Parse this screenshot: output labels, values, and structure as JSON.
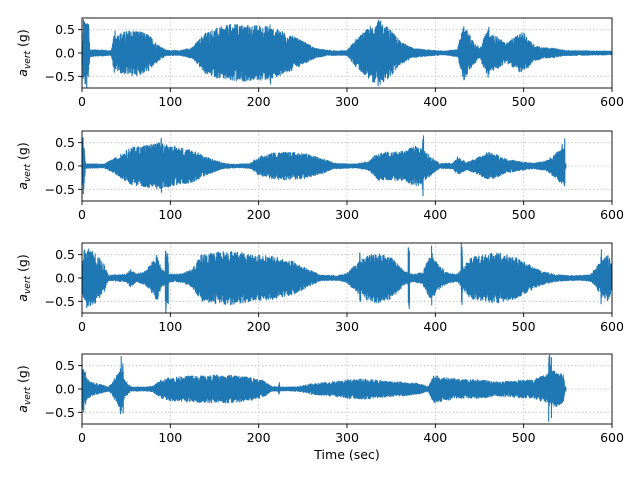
{
  "colors": {
    "series": "#1f77b4",
    "grid": "#b0b0b0"
  },
  "chart_data": [
    {
      "type": "line",
      "ylabel_base": "a",
      "ylabel_sub": "vert",
      "ylabel_unit": " (g)",
      "xlabel": "",
      "xlim": [
        0,
        600
      ],
      "ylim": [
        -0.75,
        0.75
      ],
      "xticks": [
        0,
        100,
        200,
        300,
        400,
        500,
        600
      ],
      "yticks": [
        -0.5,
        0.0,
        0.5
      ],
      "ytick_labels": [
        "−0.5",
        "0.0",
        "0.5"
      ],
      "grid": true,
      "data_end": 600,
      "envelope": [
        [
          0,
          0.05
        ],
        [
          3,
          0.7
        ],
        [
          6,
          0.8
        ],
        [
          9,
          0.08
        ],
        [
          33,
          0.05
        ],
        [
          36,
          0.35
        ],
        [
          45,
          0.45
        ],
        [
          60,
          0.5
        ],
        [
          75,
          0.4
        ],
        [
          85,
          0.2
        ],
        [
          95,
          0.06
        ],
        [
          110,
          0.05
        ],
        [
          125,
          0.12
        ],
        [
          140,
          0.45
        ],
        [
          155,
          0.55
        ],
        [
          170,
          0.62
        ],
        [
          190,
          0.6
        ],
        [
          210,
          0.58
        ],
        [
          230,
          0.45
        ],
        [
          250,
          0.25
        ],
        [
          265,
          0.1
        ],
        [
          280,
          0.05
        ],
        [
          300,
          0.05
        ],
        [
          310,
          0.3
        ],
        [
          325,
          0.55
        ],
        [
          335,
          0.72
        ],
        [
          350,
          0.5
        ],
        [
          360,
          0.25
        ],
        [
          375,
          0.1
        ],
        [
          395,
          0.06
        ],
        [
          410,
          0.04
        ],
        [
          425,
          0.08
        ],
        [
          432,
          0.6
        ],
        [
          440,
          0.35
        ],
        [
          450,
          0.1
        ],
        [
          458,
          0.45
        ],
        [
          470,
          0.35
        ],
        [
          480,
          0.2
        ],
        [
          490,
          0.35
        ],
        [
          500,
          0.45
        ],
        [
          510,
          0.2
        ],
        [
          520,
          0.12
        ],
        [
          535,
          0.1
        ],
        [
          545,
          0.06
        ],
        [
          560,
          0.05
        ],
        [
          600,
          0.04
        ]
      ],
      "spikes": [
        [
          2,
          0.85
        ],
        [
          7,
          0.8
        ],
        [
          37,
          0.55
        ],
        [
          155,
          0.6
        ],
        [
          175,
          0.7
        ],
        [
          213,
          0.8
        ],
        [
          328,
          0.7
        ],
        [
          338,
          0.75
        ],
        [
          432,
          0.8
        ],
        [
          460,
          0.6
        ]
      ]
    },
    {
      "type": "line",
      "ylabel_base": "a",
      "ylabel_sub": "vert",
      "ylabel_unit": " (g)",
      "xlabel": "",
      "xlim": [
        0,
        600
      ],
      "ylim": [
        -0.75,
        0.75
      ],
      "xticks": [
        0,
        100,
        200,
        300,
        400,
        500,
        600
      ],
      "yticks": [
        -0.5,
        0.0,
        0.5
      ],
      "ytick_labels": [
        "−0.5",
        "0.0",
        "0.5"
      ],
      "grid": true,
      "data_end": 548,
      "envelope": [
        [
          0,
          0.04
        ],
        [
          2,
          0.5
        ],
        [
          4,
          0.05
        ],
        [
          25,
          0.04
        ],
        [
          40,
          0.2
        ],
        [
          55,
          0.4
        ],
        [
          70,
          0.45
        ],
        [
          90,
          0.5
        ],
        [
          105,
          0.42
        ],
        [
          125,
          0.35
        ],
        [
          140,
          0.2
        ],
        [
          160,
          0.06
        ],
        [
          175,
          0.04
        ],
        [
          190,
          0.05
        ],
        [
          200,
          0.2
        ],
        [
          215,
          0.28
        ],
        [
          230,
          0.3
        ],
        [
          250,
          0.28
        ],
        [
          270,
          0.18
        ],
        [
          285,
          0.06
        ],
        [
          310,
          0.04
        ],
        [
          325,
          0.1
        ],
        [
          335,
          0.3
        ],
        [
          350,
          0.3
        ],
        [
          365,
          0.32
        ],
        [
          380,
          0.45
        ],
        [
          395,
          0.2
        ],
        [
          405,
          0.05
        ],
        [
          420,
          0.06
        ],
        [
          425,
          0.2
        ],
        [
          435,
          0.08
        ],
        [
          445,
          0.15
        ],
        [
          460,
          0.3
        ],
        [
          470,
          0.25
        ],
        [
          480,
          0.15
        ],
        [
          495,
          0.1
        ],
        [
          510,
          0.06
        ],
        [
          525,
          0.1
        ],
        [
          535,
          0.25
        ],
        [
          540,
          0.35
        ],
        [
          545,
          0.4
        ],
        [
          547,
          0.05
        ]
      ],
      "spikes": [
        [
          1,
          0.75
        ],
        [
          87,
          0.65
        ],
        [
          90,
          0.75
        ],
        [
          386,
          0.7
        ],
        [
          543,
          0.6
        ],
        [
          546,
          0.75
        ]
      ]
    },
    {
      "type": "line",
      "ylabel_base": "a",
      "ylabel_sub": "vert",
      "ylabel_unit": " (g)",
      "xlabel": "",
      "xlim": [
        0,
        600
      ],
      "ylim": [
        -0.75,
        0.75
      ],
      "xticks": [
        0,
        100,
        200,
        300,
        400,
        500,
        600
      ],
      "yticks": [
        -0.5,
        0.0,
        0.5
      ],
      "ytick_labels": [
        "−0.5",
        "0.0",
        "0.5"
      ],
      "grid": true,
      "data_end": 600,
      "envelope": [
        [
          0,
          0.3
        ],
        [
          5,
          0.65
        ],
        [
          15,
          0.55
        ],
        [
          25,
          0.3
        ],
        [
          30,
          0.06
        ],
        [
          50,
          0.08
        ],
        [
          55,
          0.2
        ],
        [
          62,
          0.08
        ],
        [
          72,
          0.15
        ],
        [
          78,
          0.3
        ],
        [
          85,
          0.5
        ],
        [
          90,
          0.2
        ],
        [
          95,
          0.12
        ],
        [
          105,
          0.08
        ],
        [
          115,
          0.1
        ],
        [
          125,
          0.2
        ],
        [
          135,
          0.5
        ],
        [
          150,
          0.55
        ],
        [
          165,
          0.6
        ],
        [
          180,
          0.55
        ],
        [
          200,
          0.5
        ],
        [
          220,
          0.45
        ],
        [
          240,
          0.35
        ],
        [
          255,
          0.2
        ],
        [
          270,
          0.06
        ],
        [
          290,
          0.05
        ],
        [
          300,
          0.1
        ],
        [
          310,
          0.3
        ],
        [
          320,
          0.45
        ],
        [
          335,
          0.55
        ],
        [
          350,
          0.45
        ],
        [
          365,
          0.15
        ],
        [
          375,
          0.08
        ],
        [
          385,
          0.12
        ],
        [
          395,
          0.5
        ],
        [
          405,
          0.25
        ],
        [
          415,
          0.1
        ],
        [
          425,
          0.08
        ],
        [
          440,
          0.45
        ],
        [
          455,
          0.5
        ],
        [
          470,
          0.55
        ],
        [
          490,
          0.45
        ],
        [
          505,
          0.3
        ],
        [
          520,
          0.15
        ],
        [
          535,
          0.08
        ],
        [
          545,
          0.06
        ],
        [
          560,
          0.05
        ],
        [
          575,
          0.07
        ],
        [
          585,
          0.3
        ],
        [
          595,
          0.5
        ],
        [
          600,
          0.3
        ]
      ],
      "spikes": [
        [
          3,
          0.8
        ],
        [
          95,
          0.85
        ],
        [
          97,
          0.75
        ],
        [
          140,
          0.6
        ],
        [
          315,
          0.65
        ],
        [
          370,
          0.8
        ],
        [
          396,
          0.75
        ],
        [
          430,
          0.8
        ],
        [
          588,
          0.75
        ]
      ]
    },
    {
      "type": "line",
      "ylabel_base": "a",
      "ylabel_sub": "vert",
      "ylabel_unit": " (g)",
      "xlabel": "Time (sec)",
      "xlim": [
        0,
        600
      ],
      "ylim": [
        -0.75,
        0.75
      ],
      "xticks": [
        0,
        100,
        200,
        300,
        400,
        500,
        600
      ],
      "yticks": [
        -0.5,
        0.0,
        0.5
      ],
      "ytick_labels": [
        "−0.5",
        "0.0",
        "0.5"
      ],
      "grid": true,
      "data_end": 548,
      "envelope": [
        [
          0,
          0.1
        ],
        [
          2,
          0.5
        ],
        [
          5,
          0.25
        ],
        [
          10,
          0.15
        ],
        [
          20,
          0.1
        ],
        [
          30,
          0.05
        ],
        [
          35,
          0.15
        ],
        [
          42,
          0.4
        ],
        [
          48,
          0.2
        ],
        [
          55,
          0.05
        ],
        [
          70,
          0.04
        ],
        [
          80,
          0.06
        ],
        [
          90,
          0.2
        ],
        [
          100,
          0.25
        ],
        [
          120,
          0.28
        ],
        [
          150,
          0.3
        ],
        [
          170,
          0.3
        ],
        [
          190,
          0.25
        ],
        [
          205,
          0.18
        ],
        [
          215,
          0.05
        ],
        [
          230,
          0.04
        ],
        [
          245,
          0.05
        ],
        [
          260,
          0.12
        ],
        [
          280,
          0.15
        ],
        [
          300,
          0.2
        ],
        [
          320,
          0.22
        ],
        [
          340,
          0.18
        ],
        [
          360,
          0.15
        ],
        [
          380,
          0.12
        ],
        [
          392,
          0.05
        ],
        [
          398,
          0.3
        ],
        [
          410,
          0.25
        ],
        [
          430,
          0.2
        ],
        [
          450,
          0.2
        ],
        [
          470,
          0.15
        ],
        [
          490,
          0.18
        ],
        [
          510,
          0.2
        ],
        [
          525,
          0.3
        ],
        [
          535,
          0.4
        ],
        [
          545,
          0.3
        ],
        [
          547,
          0.05
        ]
      ],
      "spikes": [
        [
          1,
          0.7
        ],
        [
          44,
          0.75
        ],
        [
          46,
          0.8
        ],
        [
          223,
          0.2
        ],
        [
          529,
          0.8
        ],
        [
          531,
          0.7
        ]
      ]
    }
  ]
}
